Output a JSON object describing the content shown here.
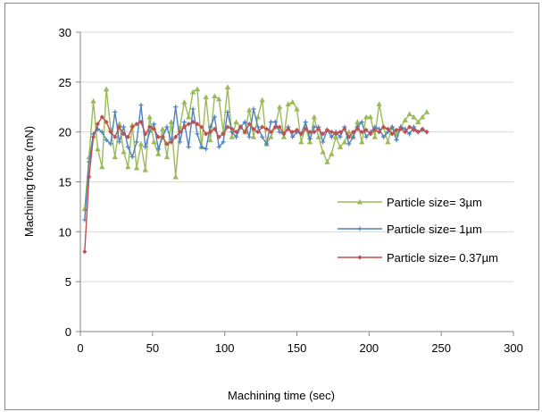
{
  "chart_data": {
    "type": "line",
    "title": "",
    "xlabel": "Machining time (sec)",
    "ylabel": "Machining force (mN)",
    "xlim": [
      0,
      300
    ],
    "ylim": [
      0,
      30
    ],
    "xticks": [
      0,
      50,
      100,
      150,
      200,
      250,
      300
    ],
    "yticks": [
      0,
      5,
      10,
      15,
      20,
      25,
      30
    ],
    "grid": "horizontal",
    "legend_position": "right",
    "series": [
      {
        "name": "Particle size= 3µm",
        "color": "#9BBB59",
        "marker": "triangle",
        "x": [
          3,
          6,
          9,
          12,
          15,
          18,
          21,
          24,
          27,
          30,
          33,
          36,
          39,
          42,
          45,
          48,
          51,
          54,
          57,
          60,
          63,
          66,
          69,
          72,
          75,
          78,
          81,
          84,
          87,
          90,
          93,
          96,
          99,
          102,
          105,
          108,
          111,
          114,
          117,
          120,
          123,
          126,
          129,
          132,
          135,
          138,
          141,
          144,
          147,
          150,
          153,
          156,
          159,
          162,
          165,
          168,
          171,
          174,
          177,
          180,
          183,
          186,
          189,
          192,
          195,
          198,
          201,
          204,
          207,
          210,
          213,
          216,
          219,
          222,
          225,
          228,
          231,
          234,
          237,
          240
        ],
        "y": [
          12.3,
          17.5,
          23.1,
          18.3,
          16.5,
          24.3,
          20.3,
          17.5,
          20.8,
          18.0,
          16.5,
          20.7,
          16.4,
          18.8,
          16.2,
          21.5,
          19.0,
          17.8,
          20.3,
          17.5,
          21.0,
          15.5,
          20.5,
          23.0,
          21.5,
          24.0,
          24.3,
          18.5,
          23.5,
          19.2,
          23.6,
          23.3,
          20.0,
          24.5,
          19.5,
          21.0,
          20.5,
          20.0,
          22.2,
          19.5,
          21.5,
          23.2,
          18.8,
          19.5,
          20.5,
          22.5,
          19.5,
          22.8,
          23.0,
          22.3,
          19.0,
          20.5,
          19.0,
          21.5,
          19.5,
          18.0,
          17.0,
          17.8,
          19.5,
          18.5,
          19.0,
          20.0,
          19.5,
          21.0,
          19.0,
          21.5,
          21.5,
          19.5,
          22.8,
          20.5,
          19.0,
          20.5,
          19.8,
          20.5,
          21.2,
          21.8,
          21.5,
          21.0,
          21.5,
          22.0
        ]
      },
      {
        "name": "Particle size= 1µm",
        "color": "#4F81BD",
        "marker": "plus",
        "x": [
          3,
          6,
          9,
          12,
          15,
          18,
          21,
          24,
          27,
          30,
          33,
          36,
          39,
          42,
          45,
          48,
          51,
          54,
          57,
          60,
          63,
          66,
          69,
          72,
          75,
          78,
          81,
          84,
          87,
          90,
          93,
          96,
          99,
          102,
          105,
          108,
          111,
          114,
          117,
          120,
          123,
          126,
          129,
          132,
          135,
          138,
          141,
          144,
          147,
          150,
          153,
          156,
          159,
          162,
          165,
          168,
          171,
          174,
          177,
          180,
          183,
          186,
          189,
          192,
          195,
          198,
          201,
          204,
          207,
          210,
          213,
          216,
          219,
          222,
          225,
          228,
          231,
          234,
          237,
          240
        ],
        "y": [
          11.2,
          17.0,
          19.8,
          20.3,
          20.0,
          19.2,
          18.8,
          22.0,
          19.0,
          20.5,
          18.5,
          17.5,
          19.0,
          22.7,
          18.5,
          20.0,
          20.8,
          18.3,
          19.5,
          20.5,
          19.0,
          22.5,
          19.0,
          21.0,
          18.5,
          22.3,
          19.8,
          18.5,
          18.3,
          20.5,
          21.5,
          18.5,
          19.0,
          22.0,
          20.0,
          19.5,
          20.5,
          21.0,
          19.5,
          22.3,
          20.5,
          19.5,
          18.8,
          21.0,
          21.0,
          20.0,
          19.8,
          20.5,
          19.5,
          20.0,
          19.8,
          21.0,
          19.3,
          20.5,
          20.5,
          19.0,
          20.2,
          19.5,
          20.0,
          19.5,
          20.5,
          18.8,
          19.5,
          20.5,
          21.0,
          19.5,
          20.0,
          20.5,
          20.3,
          19.5,
          20.0,
          20.5,
          19.2,
          20.5,
          20.3,
          19.8,
          20.5,
          20.0,
          20.2,
          20.0
        ]
      },
      {
        "name": "Particle size= 0.37µm",
        "color": "#C0504D",
        "marker": "diamond",
        "x": [
          3,
          6,
          9,
          12,
          15,
          18,
          21,
          24,
          27,
          30,
          33,
          36,
          39,
          42,
          45,
          48,
          51,
          54,
          57,
          60,
          63,
          66,
          69,
          72,
          75,
          78,
          81,
          84,
          87,
          90,
          93,
          96,
          99,
          102,
          105,
          108,
          111,
          114,
          117,
          120,
          123,
          126,
          129,
          132,
          135,
          138,
          141,
          144,
          147,
          150,
          153,
          156,
          159,
          162,
          165,
          168,
          171,
          174,
          177,
          180,
          183,
          186,
          189,
          192,
          195,
          198,
          201,
          204,
          207,
          210,
          213,
          216,
          219,
          222,
          225,
          228,
          231,
          234,
          237,
          240
        ],
        "y": [
          8.0,
          15.5,
          19.5,
          20.8,
          21.5,
          21.0,
          20.0,
          19.5,
          20.5,
          19.8,
          19.5,
          20.5,
          20.8,
          21.0,
          19.8,
          20.5,
          20.3,
          19.5,
          19.5,
          18.8,
          19.0,
          19.5,
          20.0,
          20.5,
          20.8,
          21.0,
          20.8,
          20.5,
          19.8,
          20.0,
          20.3,
          19.5,
          19.8,
          20.5,
          20.3,
          20.0,
          20.5,
          20.0,
          20.8,
          20.3,
          20.0,
          20.5,
          20.3,
          20.0,
          20.5,
          20.5,
          19.8,
          20.3,
          20.0,
          20.2,
          19.8,
          20.3,
          20.0,
          20.0,
          20.3,
          19.8,
          20.2,
          20.0,
          19.8,
          20.0,
          20.3,
          19.5,
          20.0,
          20.3,
          20.0,
          20.2,
          19.8,
          20.2,
          20.0,
          20.5,
          20.3,
          19.8,
          20.2,
          20.3,
          20.0,
          20.5,
          20.2,
          20.0,
          20.3,
          20.0
        ]
      }
    ]
  }
}
